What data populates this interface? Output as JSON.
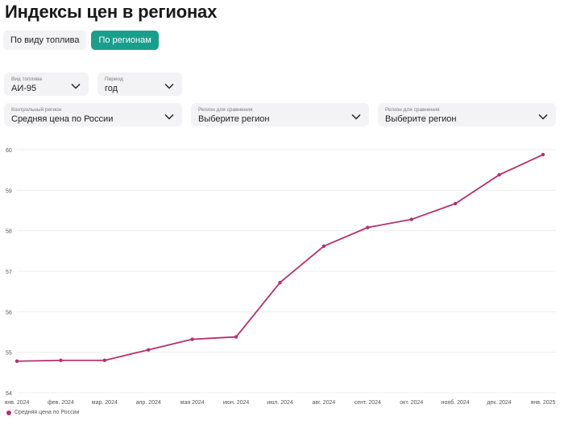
{
  "header": {
    "title": "Индексы цен в регионах"
  },
  "tabs": [
    {
      "label": "По виду топлива",
      "active": false
    },
    {
      "label": "По регионам",
      "active": true
    }
  ],
  "filters": {
    "fuel": {
      "label": "Вид топлива",
      "value": "АИ-95"
    },
    "period": {
      "label": "Период",
      "value": "год"
    },
    "control_region": {
      "label": "Контрольный регион",
      "value": "Средняя цена по России"
    },
    "compare_region_1": {
      "label": "Регион для сравнения",
      "value": "Выберите регион"
    },
    "compare_region_2": {
      "label": "Регион для сравнения",
      "value": "Выберите регион"
    }
  },
  "colors": {
    "accent": "#1a9e8c",
    "series": "#b3306d",
    "grid": "#ececec"
  },
  "chart_data": {
    "type": "line",
    "categories": [
      "янв. 2024",
      "фев. 2024",
      "мар. 2024",
      "апр. 2024",
      "мая 2024",
      "июн. 2024",
      "июл. 2024",
      "авг. 2024",
      "сент. 2024",
      "окт. 2024",
      "нояб. 2024",
      "дек. 2024",
      "янв. 2025"
    ],
    "series": [
      {
        "name": "Средняя цена по России",
        "values": [
          54.78,
          54.8,
          54.8,
          55.06,
          55.32,
          55.38,
          56.72,
          57.62,
          58.08,
          58.28,
          58.67,
          59.38,
          59.88
        ]
      }
    ],
    "ylim": [
      54,
      60
    ],
    "yticks": [
      54,
      55,
      56,
      57,
      58,
      59,
      60
    ],
    "grid": true,
    "legend": "bottom-left"
  }
}
